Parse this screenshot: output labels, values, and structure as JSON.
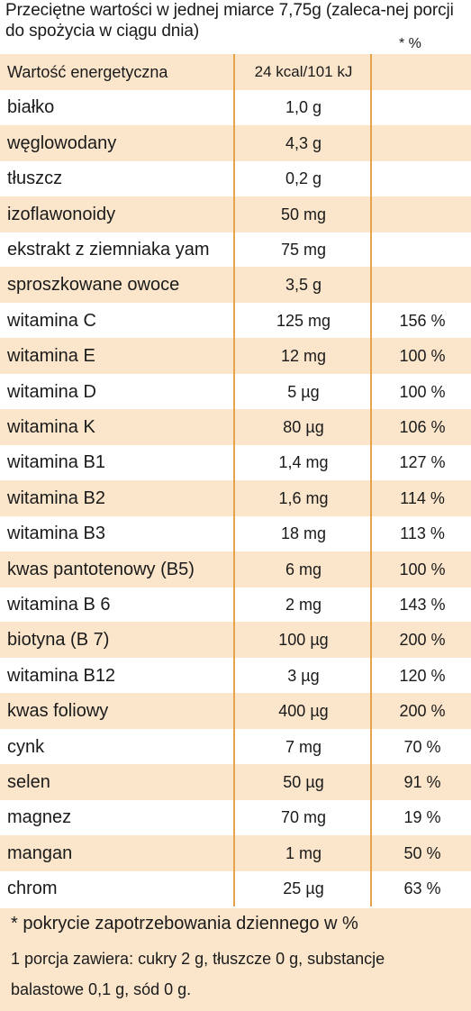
{
  "header": {
    "text": "Przeciętne wartości w jednej miarce 7,75g (zaleca-nej porcji do spożycia w ciągu dnia)",
    "pct_label": "* %"
  },
  "table": {
    "rows": [
      {
        "name": "Wartość energetyczna",
        "value": "24 kcal/101 kJ",
        "pct": ""
      },
      {
        "name": "białko",
        "value": "1,0 g",
        "pct": ""
      },
      {
        "name": "węglowodany",
        "value": "4,3 g",
        "pct": ""
      },
      {
        "name": "tłuszcz",
        "value": "0,2 g",
        "pct": ""
      },
      {
        "name": "izoflawonoidy",
        "value": "50 mg",
        "pct": ""
      },
      {
        "name": "ekstrakt z ziemniaka yam",
        "value": "75 mg",
        "pct": ""
      },
      {
        "name": "sproszkowane owoce",
        "value": "3,5 g",
        "pct": ""
      },
      {
        "name": "witamina C",
        "value": "125 mg",
        "pct": "156 %"
      },
      {
        "name": "witamina E",
        "value": "12 mg",
        "pct": "100 %"
      },
      {
        "name": "witamina D",
        "value": "5 µg",
        "pct": "100 %"
      },
      {
        "name": "witamina K",
        "value": "80 µg",
        "pct": "106 %"
      },
      {
        "name": "witamina B1",
        "value": "1,4 mg",
        "pct": "127 %"
      },
      {
        "name": "witamina B2",
        "value": "1,6 mg",
        "pct": "114 %"
      },
      {
        "name": "witamina B3",
        "value": "18 mg",
        "pct": "113 %"
      },
      {
        "name": "kwas pantotenowy (B5)",
        "value": "6 mg",
        "pct": "100 %"
      },
      {
        "name": "witamina B 6",
        "value": "2 mg",
        "pct": "143 %"
      },
      {
        "name": "biotyna  (B 7)",
        "value": "100 µg",
        "pct": "200 %"
      },
      {
        "name": "witamina B12",
        "value": "3 µg",
        "pct": "120 %"
      },
      {
        "name": "kwas foliowy",
        "value": "400 µg",
        "pct": "200 %"
      },
      {
        "name": "cynk",
        "value": "7 mg",
        "pct": "70 %"
      },
      {
        "name": "selen",
        "value": "50 µg",
        "pct": "91 %"
      },
      {
        "name": "magnez",
        "value": "70 mg",
        "pct": "19 %"
      },
      {
        "name": "mangan",
        "value": "1 mg",
        "pct": "50 %"
      },
      {
        "name": "chrom",
        "value": "25 µg",
        "pct": "63 %"
      }
    ]
  },
  "footer": {
    "line1": "* pokrycie zapotrzebowania dziennego w %",
    "line2": "1 porcja zawiera: cukry 2 g, tłuszcze 0 g, substancje",
    "line3": "balastowe 0,1 g, sód 0 g."
  },
  "colors": {
    "shade": "#fbe6cc",
    "rule": "#e8a24a",
    "text": "#1a1a1a"
  }
}
